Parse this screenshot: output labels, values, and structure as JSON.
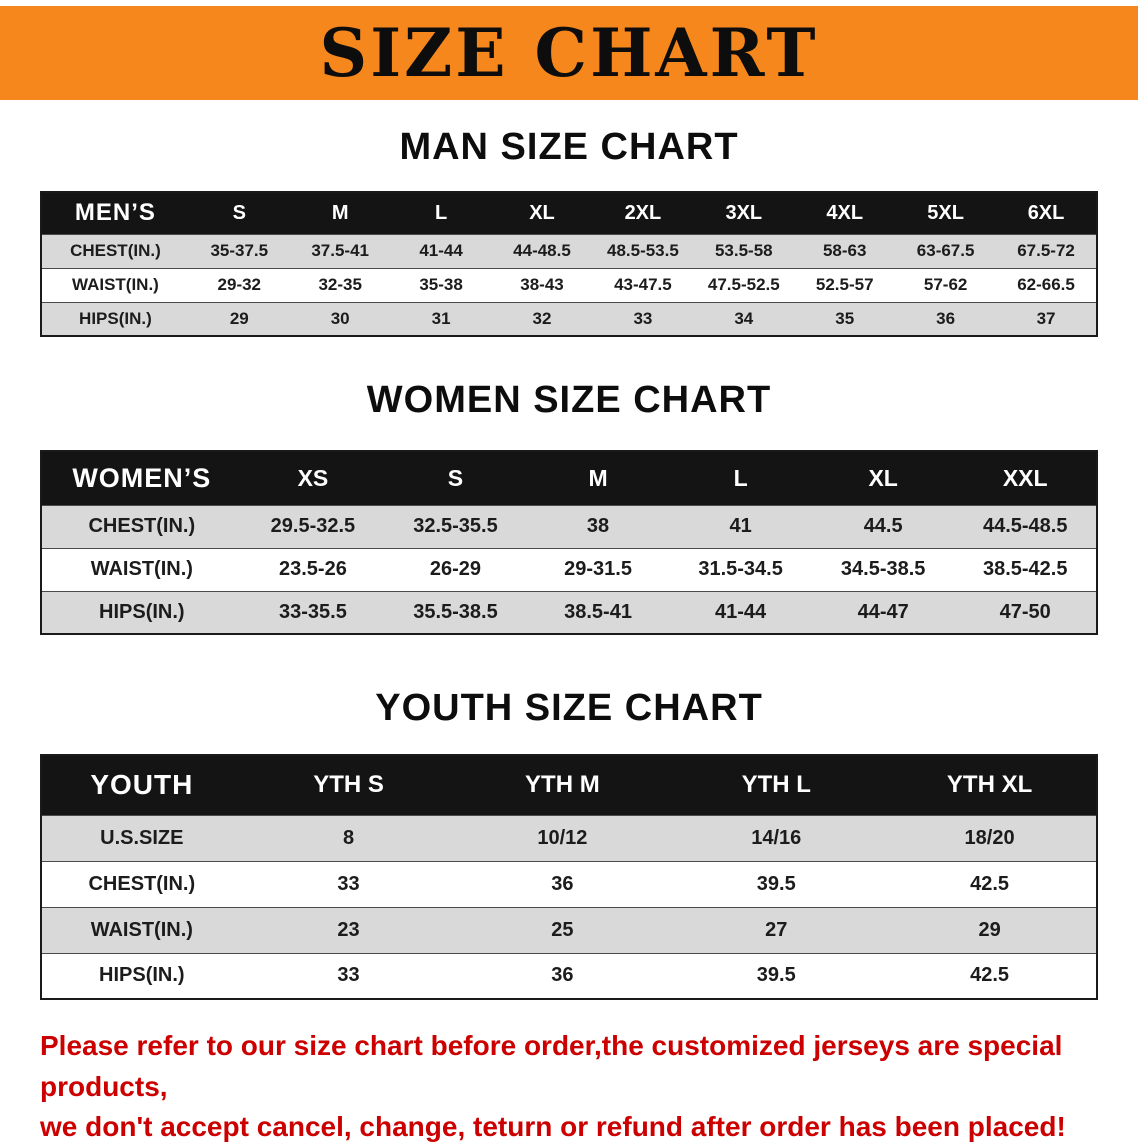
{
  "banner": {
    "title": "SIZE CHART"
  },
  "sections": [
    {
      "heading": "MAN SIZE CHART",
      "table": {
        "header": [
          "MEN’S",
          "S",
          "M",
          "L",
          "XL",
          "2XL",
          "3XL",
          "4XL",
          "5XL",
          "6XL"
        ],
        "rows": [
          [
            "CHEST(IN.)",
            "35-37.5",
            "37.5-41",
            "41-44",
            "44-48.5",
            "48.5-53.5",
            "53.5-58",
            "58-63",
            "63-67.5",
            "67.5-72"
          ],
          [
            "WAIST(IN.)",
            "29-32",
            "32-35",
            "35-38",
            "38-43",
            "43-47.5",
            "47.5-52.5",
            "52.5-57",
            "57-62",
            "62-66.5"
          ],
          [
            "HIPS(IN.)",
            "29",
            "30",
            "31",
            "32",
            "33",
            "34",
            "35",
            "36",
            "37"
          ]
        ]
      }
    },
    {
      "heading": "WOMEN SIZE CHART",
      "table": {
        "header": [
          "WOMEN’S",
          "XS",
          "S",
          "M",
          "L",
          "XL",
          "XXL"
        ],
        "rows": [
          [
            "CHEST(IN.)",
            "29.5-32.5",
            "32.5-35.5",
            "38",
            "41",
            "44.5",
            "44.5-48.5"
          ],
          [
            "WAIST(IN.)",
            "23.5-26",
            "26-29",
            "29-31.5",
            "31.5-34.5",
            "34.5-38.5",
            "38.5-42.5"
          ],
          [
            "HIPS(IN.)",
            "33-35.5",
            "35.5-38.5",
            "38.5-41",
            "41-44",
            "44-47",
            "47-50"
          ]
        ]
      }
    },
    {
      "heading": "YOUTH SIZE CHART",
      "table": {
        "header": [
          "YOUTH",
          "YTH S",
          "YTH M",
          "YTH L",
          "YTH XL"
        ],
        "rows": [
          [
            "U.S.SIZE",
            "8",
            "10/12",
            "14/16",
            "18/20"
          ],
          [
            "CHEST(IN.)",
            "33",
            "36",
            "39.5",
            "42.5"
          ],
          [
            "WAIST(IN.)",
            "23",
            "25",
            "27",
            "29"
          ],
          [
            "HIPS(IN.)",
            "33",
            "36",
            "39.5",
            "42.5"
          ]
        ]
      }
    }
  ],
  "disclaimer": {
    "line1": "Please refer to our size chart before order,the customized jerseys are special products,",
    "line2": "we don't accept cancel, change, teturn or refund after order has been placed!"
  },
  "colors": {
    "banner_orange": "#f6871d",
    "header_black": "#141414",
    "row_gray": "#d9d9d9",
    "disclaimer_red": "#cc0000"
  }
}
